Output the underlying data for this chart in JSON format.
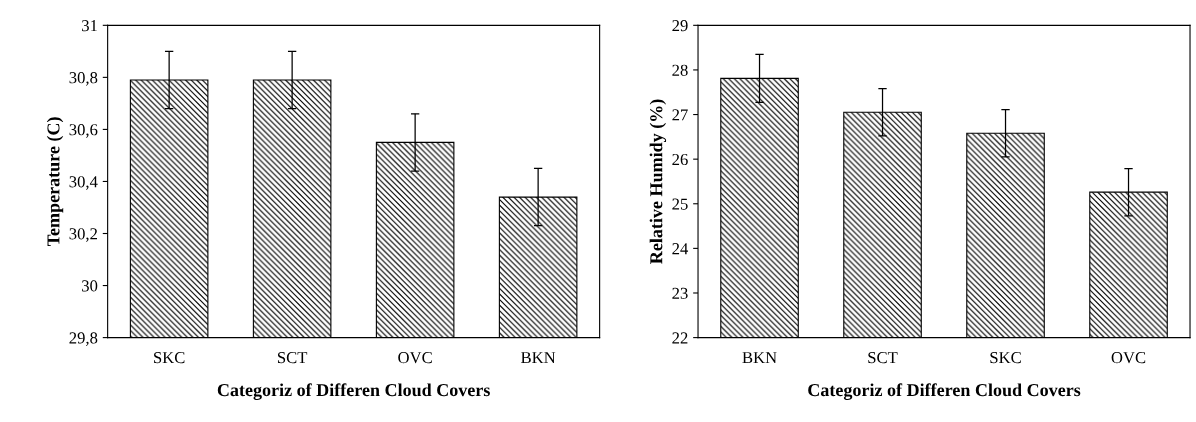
{
  "chart_data": [
    {
      "type": "bar",
      "xlabel": "Categoriz of Differen Cloud Covers",
      "ylabel": "Temperature (C)",
      "categories": [
        "SKC",
        "SCT",
        "OVC",
        "BKN"
      ],
      "values": [
        30.79,
        30.79,
        30.55,
        30.34
      ],
      "errors": [
        0.11,
        0.11,
        0.11,
        0.11
      ],
      "color": "#000000",
      "ylim": [
        29.8,
        31
      ],
      "yticks": [
        {
          "value": 29.8,
          "label": "29,8"
        },
        30,
        {
          "value": 30.2,
          "label": "30,2"
        },
        {
          "value": 30.4,
          "label": "30,4"
        },
        {
          "value": 30.6,
          "label": "30,6"
        },
        {
          "value": 30.8,
          "label": "30,8"
        },
        31
      ],
      "grid": false,
      "legend": false
    },
    {
      "type": "bar",
      "xlabel": "Categoriz of Differen Cloud Covers",
      "ylabel": "Relative Humidy (%)",
      "categories": [
        "BKN",
        "SCT",
        "SKC",
        "OVC"
      ],
      "values": [
        27.81,
        27.05,
        26.58,
        25.26
      ],
      "errors": [
        0.54,
        0.53,
        0.53,
        0.53
      ],
      "color": "#000000",
      "ylim": [
        22,
        29
      ],
      "yticks": [
        22,
        23,
        24,
        25,
        26,
        27,
        28,
        29
      ],
      "grid": false,
      "legend": false
    }
  ]
}
